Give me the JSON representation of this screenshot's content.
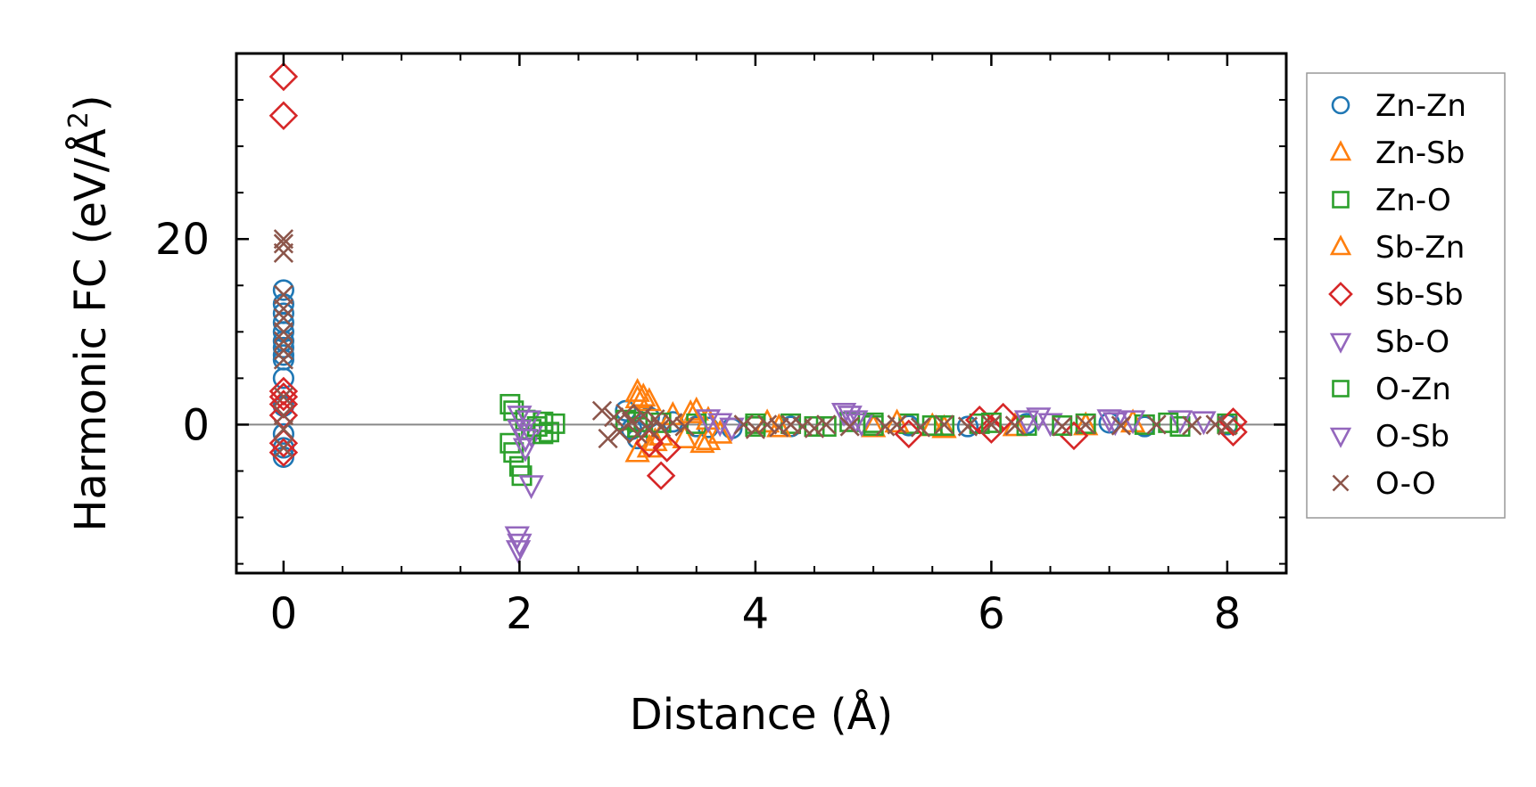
{
  "chart_data": {
    "type": "scatter",
    "title": "",
    "xlabel": "Distance (Å)",
    "ylabel_main": "Harmonic FC (eV/Å",
    "ylabel_sup": "2",
    "ylabel_end": ")",
    "xlim": [
      -0.4,
      8.5
    ],
    "ylim": [
      -16,
      40
    ],
    "xticks": [
      0,
      2,
      4,
      6,
      8
    ],
    "xtick_labels": [
      "0",
      "2",
      "4",
      "6",
      "8"
    ],
    "yticks": [
      0,
      20
    ],
    "ytick_labels": [
      "0",
      "20"
    ],
    "x_minor_step": 0.5,
    "y_minor_step": 5,
    "zero_line": true,
    "legend_position": "outside-right",
    "series": [
      {
        "name": "Zn-Zn",
        "marker": "circle",
        "color": "#1f77b4",
        "points": [
          [
            0,
            14.5
          ],
          [
            0,
            13
          ],
          [
            0,
            12
          ],
          [
            0,
            11
          ],
          [
            0,
            10
          ],
          [
            0,
            9
          ],
          [
            0,
            8.3
          ],
          [
            0,
            7.5
          ],
          [
            0,
            7
          ],
          [
            0,
            5
          ],
          [
            0,
            2
          ],
          [
            0,
            -1
          ],
          [
            0,
            -2.5
          ],
          [
            0,
            -3.5
          ],
          [
            2.9,
            1.5
          ],
          [
            2.95,
            -0.5
          ],
          [
            3.0,
            -1.5
          ],
          [
            3.1,
            0.8
          ],
          [
            3.3,
            0.3
          ],
          [
            3.5,
            -0.2
          ],
          [
            3.6,
            -0.3
          ],
          [
            3.8,
            -0.4
          ],
          [
            4.3,
            -0.2
          ],
          [
            5.3,
            -0.1
          ],
          [
            5.8,
            -0.2
          ],
          [
            6.3,
            0.1
          ],
          [
            7.0,
            0.2
          ],
          [
            7.3,
            -0.2
          ],
          [
            8.0,
            0
          ]
        ]
      },
      {
        "name": "Zn-Sb",
        "marker": "triangle-up",
        "color": "#ff7f0e",
        "points": [
          [
            3.0,
            3.5
          ],
          [
            3.05,
            3.0
          ],
          [
            3.1,
            2.5
          ],
          [
            3.0,
            -3.0
          ],
          [
            3.1,
            -2.5
          ],
          [
            3.15,
            -1.8
          ],
          [
            3.3,
            1.0
          ],
          [
            3.5,
            1.5
          ],
          [
            3.55,
            -2.0
          ],
          [
            3.4,
            -1.5
          ],
          [
            3.7,
            -1.0
          ],
          [
            3.6,
            0.5
          ],
          [
            4.1,
            0.2
          ],
          [
            5.0,
            -0.3
          ],
          [
            5.5,
            -0.2
          ],
          [
            5.6,
            -0.4
          ],
          [
            6.2,
            -0.2
          ],
          [
            6.8,
            -0.1
          ],
          [
            7.2,
            0.2
          ]
        ]
      },
      {
        "name": "Zn-O",
        "marker": "square",
        "color": "#2ca02c",
        "points": [
          [
            1.92,
            2.2
          ],
          [
            1.95,
            1.5
          ],
          [
            1.92,
            -2.0
          ],
          [
            1.95,
            -3.0
          ],
          [
            2.0,
            -4.5
          ],
          [
            2.02,
            -5.5
          ],
          [
            2.05,
            0.5
          ],
          [
            2.1,
            -0.5
          ],
          [
            2.2,
            0.3
          ],
          [
            2.25,
            -0.8
          ],
          [
            2.3,
            0.1
          ],
          [
            2.9,
            0.5
          ],
          [
            3.0,
            -0.3
          ],
          [
            3.2,
            0.2
          ],
          [
            3.5,
            0.1
          ],
          [
            4.0,
            -0.2
          ],
          [
            4.3,
            0.1
          ],
          [
            4.6,
            -0.2
          ],
          [
            4.8,
            0.3
          ],
          [
            5.0,
            -0.1
          ],
          [
            5.3,
            0.1
          ],
          [
            5.6,
            -0.1
          ],
          [
            5.9,
            0.1
          ],
          [
            6.3,
            -0.1
          ],
          [
            6.8,
            0.1
          ],
          [
            7.3,
            0
          ],
          [
            7.6,
            -0.2
          ],
          [
            8.0,
            0.1
          ]
        ]
      },
      {
        "name": "Sb-Zn",
        "marker": "triangle-up",
        "color": "#ff7f0e",
        "points": [
          [
            3.0,
            2.8
          ],
          [
            3.2,
            -1.2
          ],
          [
            3.45,
            1.2
          ],
          [
            3.6,
            -1.7
          ],
          [
            4.2,
            -0.3
          ],
          [
            5.2,
            0.2
          ]
        ]
      },
      {
        "name": "Sb-Sb",
        "marker": "diamond",
        "color": "#d62728",
        "points": [
          [
            0,
            37.5
          ],
          [
            0,
            33.3
          ],
          [
            0,
            3.6
          ],
          [
            0,
            3.0
          ],
          [
            0,
            2.2
          ],
          [
            0,
            1.0
          ],
          [
            0,
            -2.0
          ],
          [
            0,
            -3.0
          ],
          [
            3.1,
            -2.0
          ],
          [
            3.2,
            -5.5
          ],
          [
            3.25,
            -2.5
          ],
          [
            5.3,
            -1.0
          ],
          [
            5.9,
            0.5
          ],
          [
            6.0,
            -0.5
          ],
          [
            6.1,
            0.8
          ],
          [
            6.7,
            -1.2
          ],
          [
            8.05,
            -0.8
          ],
          [
            8.05,
            0.3
          ]
        ]
      },
      {
        "name": "Sb-O",
        "marker": "triangle-down",
        "color": "#9467bd",
        "points": [
          [
            1.98,
            -12
          ],
          [
            2.0,
            -12.8
          ],
          [
            1.99,
            -13.5
          ],
          [
            2.1,
            -6.5
          ],
          [
            2.05,
            -2.5
          ],
          [
            2.0,
            1.0
          ],
          [
            2.08,
            0.5
          ],
          [
            2.1,
            -1.0
          ],
          [
            3.7,
            0.2
          ],
          [
            3.8,
            -0.3
          ],
          [
            4.8,
            1.0
          ],
          [
            4.9,
            0.2
          ],
          [
            6.3,
            0.5
          ],
          [
            6.5,
            0.2
          ],
          [
            7.05,
            0.3
          ],
          [
            7.2,
            0.5
          ],
          [
            7.6,
            0.5
          ]
        ]
      },
      {
        "name": "O-Zn",
        "marker": "square",
        "color": "#2ca02c",
        "points": [
          [
            2.15,
            -0.2
          ],
          [
            2.2,
            -1.0
          ],
          [
            3.0,
            0.3
          ],
          [
            4.0,
            0.1
          ],
          [
            4.5,
            -0.2
          ],
          [
            5.0,
            0.2
          ],
          [
            5.5,
            -0.1
          ],
          [
            6.0,
            0.2
          ],
          [
            6.6,
            -0.1
          ],
          [
            7.5,
            0.2
          ]
        ]
      },
      {
        "name": "O-Sb",
        "marker": "triangle-down",
        "color": "#9467bd",
        "points": [
          [
            2.0,
            -0.5
          ],
          [
            2.05,
            -1.5
          ],
          [
            3.6,
            0.6
          ],
          [
            4.75,
            1.3
          ],
          [
            4.85,
            0.5
          ],
          [
            6.4,
            0.8
          ],
          [
            7.0,
            0.6
          ],
          [
            7.8,
            0.4
          ]
        ]
      },
      {
        "name": "O-O",
        "marker": "x",
        "color": "#8c564b",
        "points": [
          [
            0,
            20
          ],
          [
            0,
            19.5
          ],
          [
            0,
            18.5
          ],
          [
            0,
            14
          ],
          [
            0,
            12.5
          ],
          [
            0,
            11.5
          ],
          [
            0,
            10
          ],
          [
            0,
            9
          ],
          [
            0,
            8
          ],
          [
            0,
            7
          ],
          [
            0,
            3
          ],
          [
            0,
            1
          ],
          [
            0,
            -0.5
          ],
          [
            0,
            -2.5
          ],
          [
            2.7,
            1.5
          ],
          [
            2.75,
            -1.5
          ],
          [
            2.8,
            0.8
          ],
          [
            2.85,
            -0.8
          ],
          [
            2.9,
            1.2
          ],
          [
            2.95,
            0.3
          ],
          [
            3.0,
            -1.0
          ],
          [
            3.05,
            1.0
          ],
          [
            3.1,
            -0.5
          ],
          [
            3.15,
            0.6
          ],
          [
            3.2,
            -0.3
          ],
          [
            3.3,
            0.2
          ],
          [
            3.4,
            -0.2
          ],
          [
            3.9,
            0
          ],
          [
            4.0,
            -0.5
          ],
          [
            4.1,
            0
          ],
          [
            4.2,
            -0.3
          ],
          [
            4.3,
            0
          ],
          [
            4.4,
            -0.2
          ],
          [
            4.5,
            -0.4
          ],
          [
            4.6,
            0
          ],
          [
            4.8,
            -0.2
          ],
          [
            5.1,
            -0.2
          ],
          [
            5.2,
            0
          ],
          [
            5.4,
            -0.3
          ],
          [
            5.6,
            0
          ],
          [
            5.8,
            -0.2
          ],
          [
            6.0,
            0
          ],
          [
            6.2,
            -0.1
          ],
          [
            6.6,
            -0.2
          ],
          [
            6.8,
            0
          ],
          [
            7.1,
            -0.1
          ],
          [
            7.4,
            0
          ],
          [
            7.7,
            -0.1
          ],
          [
            7.9,
            0
          ],
          [
            8.0,
            -0.1
          ]
        ]
      }
    ]
  }
}
